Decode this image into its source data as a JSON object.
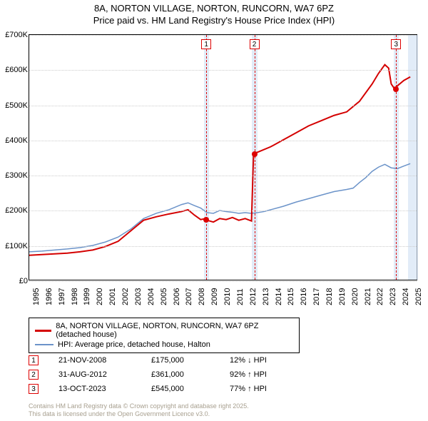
{
  "title_line1": "8A, NORTON VILLAGE, NORTON, RUNCORN, WA7 6PZ",
  "title_line2": "Price paid vs. HM Land Registry's House Price Index (HPI)",
  "chart": {
    "type": "line",
    "x_range": [
      1995,
      2025.5
    ],
    "y_range": [
      0,
      700000
    ],
    "y_ticks": [
      0,
      100000,
      200000,
      300000,
      400000,
      500000,
      600000,
      700000
    ],
    "y_tick_labels": [
      "£0",
      "£100K",
      "£200K",
      "£300K",
      "£400K",
      "£500K",
      "£600K",
      "£700K"
    ],
    "x_ticks": [
      1995,
      1996,
      1997,
      1998,
      1999,
      2000,
      2001,
      2002,
      2003,
      2004,
      2005,
      2006,
      2007,
      2008,
      2009,
      2010,
      2011,
      2012,
      2013,
      2014,
      2015,
      2016,
      2017,
      2018,
      2019,
      2020,
      2021,
      2022,
      2023,
      2024,
      2025
    ],
    "plot_bg": "#ffffff",
    "grid_color": "#cccccc",
    "series": {
      "property": {
        "label": "8A, NORTON VILLAGE, NORTON, RUNCORN, WA7 6PZ (detached house)",
        "color": "#d40000",
        "width": 2,
        "points": [
          [
            1995,
            70000
          ],
          [
            1996,
            72000
          ],
          [
            1997,
            74000
          ],
          [
            1998,
            76000
          ],
          [
            1999,
            80000
          ],
          [
            2000,
            85000
          ],
          [
            2001,
            95000
          ],
          [
            2002,
            110000
          ],
          [
            2003,
            140000
          ],
          [
            2004,
            170000
          ],
          [
            2005,
            180000
          ],
          [
            2006,
            188000
          ],
          [
            2007,
            195000
          ],
          [
            2007.5,
            200000
          ],
          [
            2008,
            185000
          ],
          [
            2008.5,
            172000
          ],
          [
            2008.89,
            175000
          ],
          [
            2009,
            170000
          ],
          [
            2009.5,
            165000
          ],
          [
            2010,
            175000
          ],
          [
            2010.5,
            172000
          ],
          [
            2011,
            178000
          ],
          [
            2011.5,
            170000
          ],
          [
            2012,
            175000
          ],
          [
            2012.5,
            168000
          ],
          [
            2012.66,
            361000
          ],
          [
            2013,
            365000
          ],
          [
            2014,
            380000
          ],
          [
            2015,
            400000
          ],
          [
            2016,
            420000
          ],
          [
            2017,
            440000
          ],
          [
            2018,
            455000
          ],
          [
            2019,
            470000
          ],
          [
            2020,
            480000
          ],
          [
            2021,
            510000
          ],
          [
            2022,
            560000
          ],
          [
            2022.5,
            590000
          ],
          [
            2023,
            615000
          ],
          [
            2023.3,
            605000
          ],
          [
            2023.5,
            560000
          ],
          [
            2023.78,
            545000
          ],
          [
            2023.9,
            550000
          ],
          [
            2024,
            555000
          ],
          [
            2024.5,
            570000
          ],
          [
            2025,
            580000
          ]
        ]
      },
      "hpi": {
        "label": "HPI: Average price, detached house, Halton",
        "color": "#6b93c9",
        "width": 1.5,
        "points": [
          [
            1995,
            80000
          ],
          [
            1996,
            82000
          ],
          [
            1997,
            85000
          ],
          [
            1998,
            88000
          ],
          [
            1999,
            92000
          ],
          [
            2000,
            98000
          ],
          [
            2001,
            108000
          ],
          [
            2002,
            122000
          ],
          [
            2003,
            145000
          ],
          [
            2004,
            175000
          ],
          [
            2005,
            190000
          ],
          [
            2006,
            200000
          ],
          [
            2007,
            215000
          ],
          [
            2007.5,
            220000
          ],
          [
            2008,
            212000
          ],
          [
            2008.5,
            205000
          ],
          [
            2009,
            192000
          ],
          [
            2009.5,
            190000
          ],
          [
            2010,
            198000
          ],
          [
            2010.5,
            195000
          ],
          [
            2011,
            193000
          ],
          [
            2011.5,
            190000
          ],
          [
            2012,
            192000
          ],
          [
            2012.5,
            190000
          ],
          [
            2013,
            192000
          ],
          [
            2013.5,
            195000
          ],
          [
            2014,
            200000
          ],
          [
            2015,
            210000
          ],
          [
            2016,
            222000
          ],
          [
            2017,
            232000
          ],
          [
            2018,
            242000
          ],
          [
            2019,
            252000
          ],
          [
            2020,
            258000
          ],
          [
            2020.5,
            262000
          ],
          [
            2021,
            278000
          ],
          [
            2021.5,
            292000
          ],
          [
            2022,
            310000
          ],
          [
            2022.5,
            322000
          ],
          [
            2023,
            330000
          ],
          [
            2023.5,
            320000
          ],
          [
            2024,
            318000
          ],
          [
            2024.5,
            325000
          ],
          [
            2025,
            332000
          ]
        ]
      }
    },
    "markers": [
      {
        "num": "1",
        "x": 2008.89,
        "price": 175000,
        "band_start": 2008.7,
        "band_end": 2009.1,
        "box_top": true
      },
      {
        "num": "2",
        "x": 2012.66,
        "price": 361000,
        "band_start": 2012.45,
        "band_end": 2012.9,
        "box_top": true
      },
      {
        "num": "3",
        "x": 2023.78,
        "price": 545000,
        "band_start": 2023.58,
        "band_end": 2024.0,
        "box_top": true
      }
    ],
    "end_band": {
      "start": 2024.7,
      "end": 2025.5
    }
  },
  "legend": {
    "s1_label": "8A, NORTON VILLAGE, NORTON, RUNCORN, WA7 6PZ (detached house)",
    "s2_label": "HPI: Average price, detached house, Halton"
  },
  "events": [
    {
      "num": "1",
      "date": "21-NOV-2008",
      "price": "£175,000",
      "pct": "12% ↓ HPI"
    },
    {
      "num": "2",
      "date": "31-AUG-2012",
      "price": "£361,000",
      "pct": "92% ↑ HPI"
    },
    {
      "num": "3",
      "date": "13-OCT-2023",
      "price": "£545,000",
      "pct": "77% ↑ HPI"
    }
  ],
  "footnote_l1": "Contains HM Land Registry data © Crown copyright and database right 2025.",
  "footnote_l2": "This data is licensed under the Open Government Licence v3.0."
}
